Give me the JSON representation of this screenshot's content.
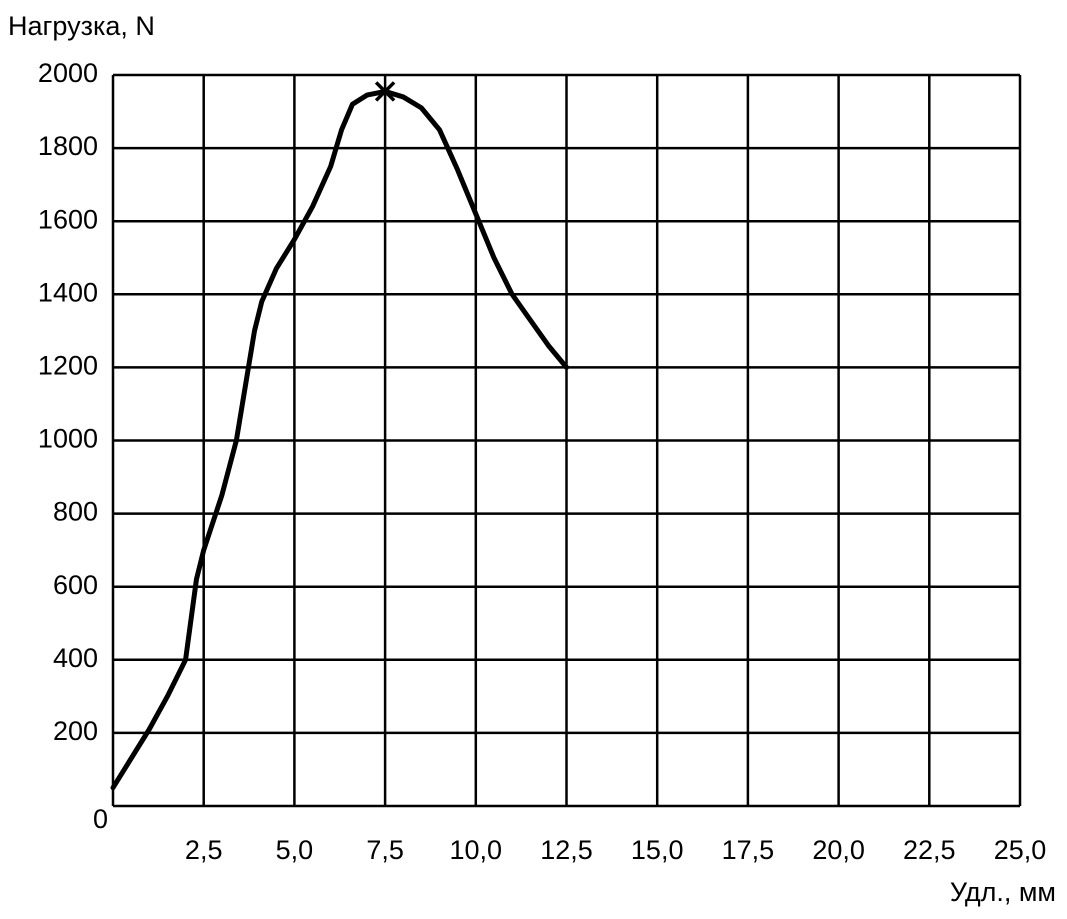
{
  "chart_data": {
    "type": "line",
    "y_label": "Нагрузка, N",
    "x_label": "Удл., мм",
    "x": [
      0,
      1,
      1.5,
      2,
      2.3,
      2.5,
      3,
      3.4,
      3.9,
      4.1,
      4.5,
      5,
      5.5,
      6,
      6.3,
      6.6,
      7,
      7.5,
      8,
      8.5,
      9,
      9.5,
      10,
      10.5,
      11,
      11.5,
      12,
      12.5
    ],
    "series": [
      {
        "color": "#000000",
        "values": [
          50,
          210,
          300,
          400,
          620,
          700,
          850,
          1000,
          1300,
          1380,
          1470,
          1550,
          1640,
          1750,
          1850,
          1920,
          1945,
          1955,
          1940,
          1910,
          1850,
          1740,
          1620,
          1500,
          1400,
          1330,
          1260,
          1200
        ]
      }
    ],
    "peak_marker": {
      "x": 7.5,
      "y": 1955
    },
    "xlim": [
      0,
      25
    ],
    "xticks": [
      {
        "value": 2.5,
        "label": "2,5"
      },
      {
        "value": 5,
        "label": "5,0"
      },
      {
        "value": 7.5,
        "label": "7,5"
      },
      {
        "value": 10,
        "label": "10,0"
      },
      {
        "value": 12.5,
        "label": "12,5"
      },
      {
        "value": 15,
        "label": "15,0"
      },
      {
        "value": 17.5,
        "label": "17,5"
      },
      {
        "value": 20,
        "label": "20,0"
      },
      {
        "value": 22.5,
        "label": "22,5"
      },
      {
        "value": 25,
        "label": "25,0"
      }
    ],
    "ylim": [
      0,
      2000
    ],
    "yticks": [
      0,
      200,
      400,
      600,
      800,
      1000,
      1200,
      1400,
      1600,
      1800,
      2000
    ],
    "grid": true
  }
}
